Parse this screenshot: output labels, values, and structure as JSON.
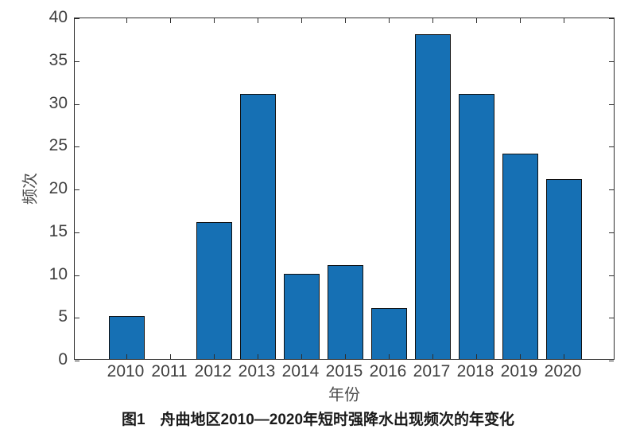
{
  "figure": {
    "caption": "图1　舟曲地区2010—2020年短时强降水出现频次的年变化"
  },
  "chart_data": {
    "type": "bar",
    "title": "图1　舟曲地区2010—2020年短时强降水出现频次的年变化",
    "categories": [
      "2010",
      "2011",
      "2012",
      "2013",
      "2014",
      "2015",
      "2016",
      "2017",
      "2018",
      "2019",
      "2020"
    ],
    "values": [
      5,
      0,
      16,
      31,
      10,
      11,
      6,
      38,
      31,
      24,
      21
    ],
    "xlabel": "年份",
    "ylabel": "频次",
    "ylim": [
      0,
      40
    ],
    "yticks": [
      0,
      5,
      10,
      15,
      20,
      25,
      30,
      35,
      40
    ],
    "grid": false,
    "legend": null,
    "box": true,
    "tick_direction": "in",
    "bar_color": "#1670b4",
    "bar_edge_color": "#111111",
    "axis_color": "#2e2e2e",
    "tick_label_color": "#404040",
    "axis_label_color": "#4d4d4d",
    "caption_color": "#1a1a1a"
  }
}
